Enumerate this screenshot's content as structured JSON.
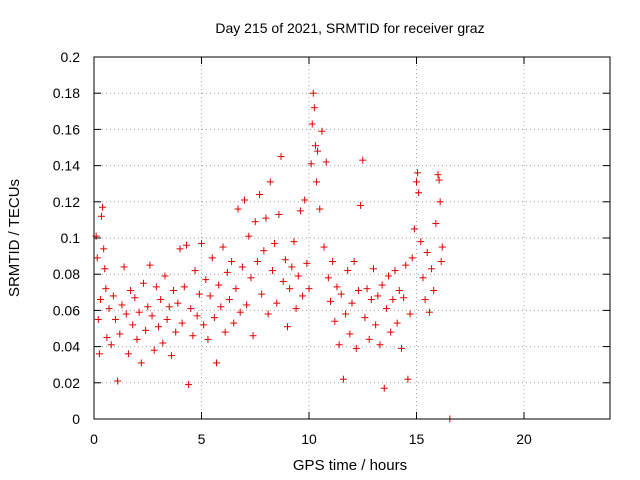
{
  "chart_data": {
    "type": "scatter",
    "title": "Day 215 of 2021, SRMTID for receiver graz",
    "xlabel": "GPS time / hours",
    "ylabel": "SRMTID / TECUs",
    "xlim": [
      0,
      24
    ],
    "ylim": [
      0,
      0.2
    ],
    "xticks": [
      0,
      5,
      10,
      15,
      20
    ],
    "xtick_labels": [
      "0",
      "5",
      "10",
      "15",
      "20"
    ],
    "yticks": [
      0,
      0.02,
      0.04,
      0.06,
      0.08,
      0.1,
      0.12,
      0.14,
      0.16,
      0.18,
      0.2
    ],
    "ytick_labels": [
      "0",
      "0.02",
      "0.04",
      "0.06",
      "0.08",
      "0.1",
      "0.12",
      "0.14",
      "0.16",
      "0.18",
      "0.2"
    ],
    "grid": true,
    "marker": "+",
    "color": "#e00000",
    "series": [
      {
        "name": "SRMTID",
        "points": [
          [
            0.1,
            0.101
          ],
          [
            0.15,
            0.089
          ],
          [
            0.2,
            0.055
          ],
          [
            0.25,
            0.036
          ],
          [
            0.3,
            0.066
          ],
          [
            0.35,
            0.112
          ],
          [
            0.4,
            0.117
          ],
          [
            0.45,
            0.094
          ],
          [
            0.5,
            0.083
          ],
          [
            0.55,
            0.072
          ],
          [
            0.6,
            0.045
          ],
          [
            0.7,
            0.061
          ],
          [
            0.8,
            0.041
          ],
          [
            0.9,
            0.068
          ],
          [
            1.0,
            0.055
          ],
          [
            1.1,
            0.021
          ],
          [
            1.2,
            0.047
          ],
          [
            1.3,
            0.063
          ],
          [
            1.4,
            0.084
          ],
          [
            1.5,
            0.058
          ],
          [
            1.6,
            0.036
          ],
          [
            1.7,
            0.071
          ],
          [
            1.8,
            0.052
          ],
          [
            1.9,
            0.067
          ],
          [
            2.0,
            0.044
          ],
          [
            2.1,
            0.059
          ],
          [
            2.2,
            0.031
          ],
          [
            2.3,
            0.075
          ],
          [
            2.4,
            0.049
          ],
          [
            2.5,
            0.062
          ],
          [
            2.6,
            0.085
          ],
          [
            2.7,
            0.057
          ],
          [
            2.8,
            0.038
          ],
          [
            2.9,
            0.073
          ],
          [
            3.0,
            0.051
          ],
          [
            3.1,
            0.066
          ],
          [
            3.2,
            0.042
          ],
          [
            3.3,
            0.079
          ],
          [
            3.4,
            0.055
          ],
          [
            3.5,
            0.062
          ],
          [
            3.6,
            0.035
          ],
          [
            3.7,
            0.071
          ],
          [
            3.8,
            0.048
          ],
          [
            3.9,
            0.064
          ],
          [
            4.0,
            0.094
          ],
          [
            4.1,
            0.053
          ],
          [
            4.2,
            0.073
          ],
          [
            4.3,
            0.096
          ],
          [
            4.4,
            0.019
          ],
          [
            4.5,
            0.061
          ],
          [
            4.6,
            0.046
          ],
          [
            4.7,
            0.082
          ],
          [
            4.8,
            0.057
          ],
          [
            4.9,
            0.069
          ],
          [
            5.0,
            0.097
          ],
          [
            5.1,
            0.052
          ],
          [
            5.2,
            0.077
          ],
          [
            5.3,
            0.044
          ],
          [
            5.4,
            0.068
          ],
          [
            5.5,
            0.089
          ],
          [
            5.6,
            0.056
          ],
          [
            5.7,
            0.031
          ],
          [
            5.8,
            0.074
          ],
          [
            5.9,
            0.062
          ],
          [
            6.0,
            0.095
          ],
          [
            6.1,
            0.048
          ],
          [
            6.2,
            0.081
          ],
          [
            6.3,
            0.066
          ],
          [
            6.4,
            0.087
          ],
          [
            6.5,
            0.053
          ],
          [
            6.6,
            0.072
          ],
          [
            6.7,
            0.116
          ],
          [
            6.8,
            0.059
          ],
          [
            6.9,
            0.084
          ],
          [
            7.0,
            0.121
          ],
          [
            7.1,
            0.063
          ],
          [
            7.2,
            0.101
          ],
          [
            7.3,
            0.078
          ],
          [
            7.4,
            0.046
          ],
          [
            7.5,
            0.109
          ],
          [
            7.6,
            0.087
          ],
          [
            7.7,
            0.124
          ],
          [
            7.8,
            0.069
          ],
          [
            7.9,
            0.093
          ],
          [
            8.0,
            0.111
          ],
          [
            8.1,
            0.058
          ],
          [
            8.2,
            0.131
          ],
          [
            8.3,
            0.082
          ],
          [
            8.4,
            0.097
          ],
          [
            8.5,
            0.064
          ],
          [
            8.6,
            0.113
          ],
          [
            8.7,
            0.145
          ],
          [
            8.8,
            0.076
          ],
          [
            8.9,
            0.088
          ],
          [
            9.0,
            0.051
          ],
          [
            9.1,
            0.072
          ],
          [
            9.2,
            0.084
          ],
          [
            9.3,
            0.098
          ],
          [
            9.4,
            0.061
          ],
          [
            9.5,
            0.079
          ],
          [
            9.6,
            0.115
          ],
          [
            9.7,
            0.068
          ],
          [
            9.8,
            0.121
          ],
          [
            9.9,
            0.086
          ],
          [
            10.0,
            0.072
          ],
          [
            10.1,
            0.141
          ],
          [
            10.15,
            0.163
          ],
          [
            10.2,
            0.18
          ],
          [
            10.25,
            0.172
          ],
          [
            10.3,
            0.151
          ],
          [
            10.35,
            0.131
          ],
          [
            10.4,
            0.148
          ],
          [
            10.5,
            0.116
          ],
          [
            10.6,
            0.159
          ],
          [
            10.7,
            0.095
          ],
          [
            10.8,
            0.142
          ],
          [
            10.9,
            0.078
          ],
          [
            11.0,
            0.065
          ],
          [
            11.1,
            0.087
          ],
          [
            11.2,
            0.054
          ],
          [
            11.3,
            0.073
          ],
          [
            11.4,
            0.041
          ],
          [
            11.5,
            0.069
          ],
          [
            11.6,
            0.022
          ],
          [
            11.7,
            0.058
          ],
          [
            11.8,
            0.082
          ],
          [
            11.9,
            0.047
          ],
          [
            12.0,
            0.064
          ],
          [
            12.1,
            0.087
          ],
          [
            12.2,
            0.039
          ],
          [
            12.3,
            0.071
          ],
          [
            12.4,
            0.118
          ],
          [
            12.5,
            0.143
          ],
          [
            12.6,
            0.056
          ],
          [
            12.7,
            0.072
          ],
          [
            12.8,
            0.044
          ],
          [
            12.9,
            0.066
          ],
          [
            13.0,
            0.083
          ],
          [
            13.1,
            0.052
          ],
          [
            13.2,
            0.068
          ],
          [
            13.3,
            0.041
          ],
          [
            13.4,
            0.074
          ],
          [
            13.5,
            0.017
          ],
          [
            13.6,
            0.061
          ],
          [
            13.7,
            0.079
          ],
          [
            13.8,
            0.048
          ],
          [
            13.9,
            0.066
          ],
          [
            14.0,
            0.082
          ],
          [
            14.1,
            0.053
          ],
          [
            14.2,
            0.071
          ],
          [
            14.3,
            0.039
          ],
          [
            14.4,
            0.067
          ],
          [
            14.5,
            0.085
          ],
          [
            14.6,
            0.022
          ],
          [
            14.7,
            0.058
          ],
          [
            14.8,
            0.089
          ],
          [
            14.9,
            0.105
          ],
          [
            15.0,
            0.131
          ],
          [
            15.05,
            0.136
          ],
          [
            15.1,
            0.125
          ],
          [
            15.2,
            0.098
          ],
          [
            15.3,
            0.078
          ],
          [
            15.4,
            0.066
          ],
          [
            15.5,
            0.092
          ],
          [
            15.6,
            0.059
          ],
          [
            15.7,
            0.083
          ],
          [
            15.8,
            0.071
          ],
          [
            15.9,
            0.108
          ],
          [
            16.0,
            0.135
          ],
          [
            16.05,
            0.132
          ],
          [
            16.1,
            0.12
          ],
          [
            16.15,
            0.087
          ],
          [
            16.2,
            0.095
          ],
          [
            16.55,
            0.0
          ]
        ]
      }
    ]
  }
}
